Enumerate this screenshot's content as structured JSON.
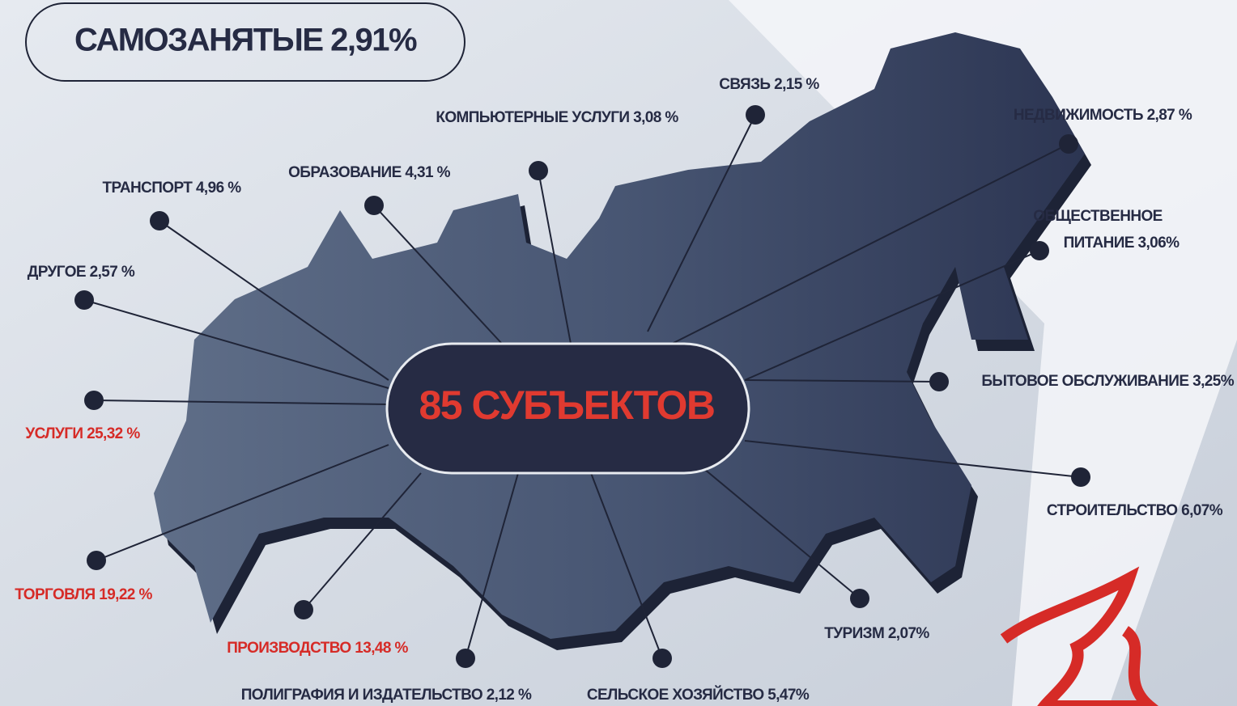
{
  "header": {
    "title": "САМОЗАНЯТЫЕ 2,91%"
  },
  "center": {
    "label": "85 СУБЪЕКТОВ",
    "color": "#e03a30"
  },
  "labels": [
    {
      "lines": [
        "СВЯЗЬ 2,15 %"
      ]
    },
    {
      "lines": [
        "КОМПЬЮТЕРНЫЕ УСЛУГИ 3,08 %"
      ]
    },
    {
      "lines": [
        "НЕДВИЖИМОСТЬ 2,87 %"
      ]
    },
    {
      "lines": [
        "ОБРАЗОВАНИЕ 4,31 %"
      ]
    },
    {
      "lines": [
        "ТРАНСПОРТ 4,96 %"
      ]
    },
    {
      "lines": [
        "ОБЩЕСТВЕННОЕ",
        "ПИТАНИЕ 3,06%"
      ]
    },
    {
      "lines": [
        "ДРУГОЕ 2,57 %"
      ]
    },
    {
      "lines": [
        "БЫТОВОЕ ОБСЛУЖИВАНИЕ 3,25%"
      ]
    },
    {
      "lines": [
        "УСЛУГИ 25,32 %"
      ],
      "color": "#d62b27"
    },
    {
      "lines": [
        "СТРОИТЕЛЬСТВО 6,07%"
      ]
    },
    {
      "lines": [
        "ТОРГОВЛЯ 19,22 %"
      ],
      "color": "#d62b27"
    },
    {
      "lines": [
        "ТУРИЗМ 2,07%"
      ]
    },
    {
      "lines": [
        "ПРОИЗВОДСТВО 13,48 %"
      ],
      "color": "#d62b27"
    },
    {
      "lines": [
        "ПОЛИГРАФИЯ И ИЗДАТЕЛЬСТВО 2,12 %"
      ]
    },
    {
      "lines": [
        "СЕЛЬСКОЕ ХОЗЯЙСТВО 5,47%"
      ]
    }
  ]
}
